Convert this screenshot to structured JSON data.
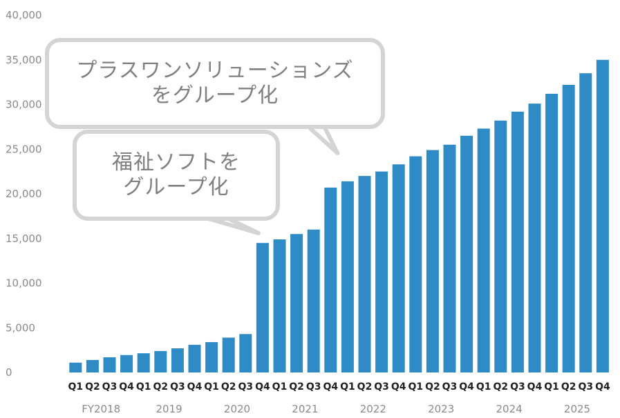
{
  "chart_data": {
    "type": "bar",
    "title": "",
    "xlabel": "",
    "ylabel": "",
    "ylim": [
      0,
      40000
    ],
    "yticks": [
      0,
      5000,
      10000,
      15000,
      20000,
      25000,
      30000,
      35000,
      40000
    ],
    "ytick_labels": [
      "0",
      "5,000",
      "10,000",
      "15,000",
      "20,000",
      "25,000",
      "30,000",
      "35,000",
      "40,000"
    ],
    "grid": false,
    "legend": "none",
    "bar_color": "#2e8bc6",
    "categories": [
      "Q1",
      "Q2",
      "Q3",
      "Q4",
      "Q1",
      "Q2",
      "Q3",
      "Q4",
      "Q1",
      "Q2",
      "Q3",
      "Q4",
      "Q1",
      "Q2",
      "Q3",
      "Q4",
      "Q1",
      "Q2",
      "Q3",
      "Q4",
      "Q1",
      "Q2",
      "Q3",
      "Q4",
      "Q1",
      "Q2",
      "Q3",
      "Q4",
      "Q1",
      "Q2",
      "Q3",
      "Q4"
    ],
    "years": [
      {
        "label": "FY2018",
        "start": 0,
        "end": 3
      },
      {
        "label": "2019",
        "start": 4,
        "end": 7
      },
      {
        "label": "2020",
        "start": 8,
        "end": 11
      },
      {
        "label": "2021",
        "start": 12,
        "end": 15
      },
      {
        "label": "2022",
        "start": 16,
        "end": 19
      },
      {
        "label": "2023",
        "start": 20,
        "end": 23
      },
      {
        "label": "2024",
        "start": 24,
        "end": 27
      },
      {
        "label": "2025",
        "start": 28,
        "end": 31
      }
    ],
    "values": [
      1100,
      1400,
      1700,
      1950,
      2150,
      2400,
      2700,
      3100,
      3400,
      3900,
      4300,
      14500,
      14900,
      15500,
      16000,
      20700,
      21400,
      22000,
      22500,
      23300,
      24200,
      24900,
      25500,
      26500,
      27300,
      28200,
      29200,
      30100,
      31200,
      32200,
      33500,
      35000
    ],
    "annotations": [
      {
        "lines": [
          "プラスワンソリューションズ",
          "をグループ化"
        ],
        "target_index": 15
      },
      {
        "lines": [
          "福祉ソフトを",
          "グループ化"
        ],
        "target_index": 11
      }
    ]
  }
}
